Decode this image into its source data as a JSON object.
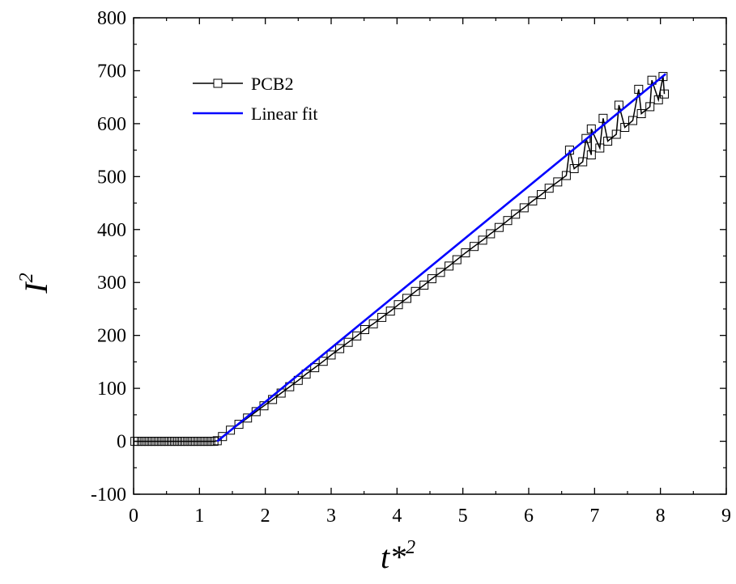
{
  "chart_data": {
    "type": "line",
    "xlabel": "t*",
    "xlabel_sup": "2",
    "ylabel": "I",
    "ylabel_sup": "2",
    "xlim": [
      0,
      9
    ],
    "ylim": [
      -100,
      800
    ],
    "x_ticks": [
      0,
      1,
      2,
      3,
      4,
      5,
      6,
      7,
      8,
      9
    ],
    "y_ticks": [
      -100,
      0,
      100,
      200,
      300,
      400,
      500,
      600,
      700,
      800
    ],
    "grid": false,
    "legend_position": "top-left",
    "series": [
      {
        "name": "PCB2",
        "color": "#000000",
        "marker": "open-square",
        "points": [
          [
            0.02,
            0
          ],
          [
            0.07,
            0
          ],
          [
            0.12,
            0
          ],
          [
            0.17,
            0
          ],
          [
            0.22,
            0
          ],
          [
            0.27,
            0
          ],
          [
            0.32,
            0
          ],
          [
            0.37,
            0
          ],
          [
            0.42,
            0
          ],
          [
            0.47,
            0
          ],
          [
            0.52,
            0
          ],
          [
            0.57,
            0
          ],
          [
            0.62,
            0
          ],
          [
            0.67,
            0
          ],
          [
            0.72,
            0
          ],
          [
            0.77,
            0
          ],
          [
            0.82,
            0
          ],
          [
            0.87,
            0
          ],
          [
            0.92,
            0
          ],
          [
            0.97,
            0
          ],
          [
            1.02,
            0
          ],
          [
            1.07,
            0
          ],
          [
            1.12,
            0
          ],
          [
            1.17,
            0
          ],
          [
            1.22,
            0
          ],
          [
            1.27,
            1
          ],
          [
            1.35,
            9
          ],
          [
            1.47,
            21
          ],
          [
            1.6,
            32
          ],
          [
            1.73,
            44
          ],
          [
            1.86,
            56
          ],
          [
            1.98,
            67
          ],
          [
            2.11,
            79
          ],
          [
            2.24,
            91
          ],
          [
            2.37,
            103
          ],
          [
            2.5,
            115
          ],
          [
            2.62,
            127
          ],
          [
            2.75,
            139
          ],
          [
            2.88,
            151
          ],
          [
            3.0,
            163
          ],
          [
            3.13,
            175
          ],
          [
            3.26,
            187
          ],
          [
            3.39,
            199
          ],
          [
            3.51,
            211
          ],
          [
            3.64,
            222
          ],
          [
            3.77,
            234
          ],
          [
            3.9,
            246
          ],
          [
            4.02,
            258
          ],
          [
            4.15,
            270
          ],
          [
            4.28,
            283
          ],
          [
            4.41,
            295
          ],
          [
            4.53,
            307
          ],
          [
            4.66,
            319
          ],
          [
            4.79,
            331
          ],
          [
            4.91,
            343
          ],
          [
            5.04,
            356
          ],
          [
            5.17,
            368
          ],
          [
            5.3,
            380
          ],
          [
            5.42,
            392
          ],
          [
            5.55,
            404
          ],
          [
            5.68,
            417
          ],
          [
            5.8,
            429
          ],
          [
            5.93,
            441
          ],
          [
            6.06,
            454
          ],
          [
            6.19,
            466
          ],
          [
            6.31,
            478
          ],
          [
            6.44,
            490
          ],
          [
            6.57,
            502
          ],
          [
            6.69,
            515
          ],
          [
            6.82,
            528
          ],
          [
            6.95,
            541
          ],
          [
            7.08,
            554
          ],
          [
            7.2,
            567
          ],
          [
            7.33,
            580
          ],
          [
            7.46,
            593
          ],
          [
            7.58,
            606
          ],
          [
            7.71,
            619
          ],
          [
            7.84,
            632
          ],
          [
            7.97,
            645
          ],
          [
            8.06,
            656
          ],
          [
            6.62,
            550
          ],
          [
            6.87,
            572
          ],
          [
            6.95,
            590
          ],
          [
            7.13,
            610
          ],
          [
            7.37,
            635
          ],
          [
            7.67,
            665
          ],
          [
            7.87,
            682
          ],
          [
            8.04,
            689
          ]
        ]
      },
      {
        "name": "Linear fit",
        "color": "#0000ff",
        "points": [
          [
            1.27,
            0
          ],
          [
            8.08,
            694
          ]
        ]
      }
    ]
  }
}
